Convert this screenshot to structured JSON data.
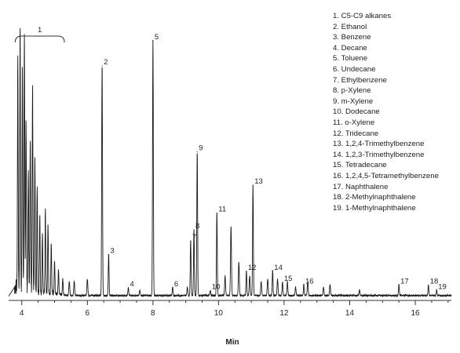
{
  "chart_data": {
    "type": "line",
    "xlabel": "Min",
    "ylabel": "",
    "xlim": [
      3.6,
      17.1
    ],
    "ylim": [
      0,
      100
    ],
    "x_ticks": [
      4,
      6,
      8,
      10,
      12,
      14,
      16
    ],
    "grid": false,
    "legend_position": "top-right",
    "line_color": "#1a1a1a",
    "baseline": 1.2,
    "range_annotation": {
      "label": "1",
      "x_start": 3.8,
      "x_end": 5.3
    },
    "peaks": [
      {
        "label": "2",
        "x": 6.45,
        "y": 83
      },
      {
        "label": "3",
        "x": 6.65,
        "y": 15
      },
      {
        "label": "4",
        "x": 7.25,
        "y": 3
      },
      {
        "label": "5",
        "x": 8.0,
        "y": 92
      },
      {
        "label": "6",
        "x": 8.6,
        "y": 3
      },
      {
        "label": "7",
        "x": 9.15,
        "y": 20
      },
      {
        "label": "8",
        "x": 9.25,
        "y": 24
      },
      {
        "label": "9",
        "x": 9.35,
        "y": 52
      },
      {
        "label": "10",
        "x": 9.75,
        "y": 2
      },
      {
        "label": "11",
        "x": 9.95,
        "y": 30
      },
      {
        "label": "12",
        "x": 10.85,
        "y": 9
      },
      {
        "label": "13",
        "x": 11.05,
        "y": 40
      },
      {
        "label": "14",
        "x": 11.65,
        "y": 9
      },
      {
        "label": "15",
        "x": 11.95,
        "y": 5
      },
      {
        "label": "16",
        "x": 12.6,
        "y": 4
      },
      {
        "label": "17",
        "x": 15.5,
        "y": 4
      },
      {
        "label": "18",
        "x": 16.4,
        "y": 4
      },
      {
        "label": "19",
        "x": 16.65,
        "y": 2
      }
    ],
    "unlabeled_peaks": [
      {
        "x": 3.88,
        "y": 82
      },
      {
        "x": 3.95,
        "y": 94
      },
      {
        "x": 4.02,
        "y": 80
      },
      {
        "x": 4.08,
        "y": 94
      },
      {
        "x": 4.13,
        "y": 60
      },
      {
        "x": 4.2,
        "y": 44
      },
      {
        "x": 4.26,
        "y": 55
      },
      {
        "x": 4.33,
        "y": 73
      },
      {
        "x": 4.4,
        "y": 48
      },
      {
        "x": 4.47,
        "y": 38
      },
      {
        "x": 4.55,
        "y": 27
      },
      {
        "x": 4.63,
        "y": 20
      },
      {
        "x": 4.72,
        "y": 30
      },
      {
        "x": 4.8,
        "y": 24
      },
      {
        "x": 4.9,
        "y": 18
      },
      {
        "x": 5.0,
        "y": 12
      },
      {
        "x": 5.12,
        "y": 9
      },
      {
        "x": 5.25,
        "y": 6
      },
      {
        "x": 5.45,
        "y": 5
      },
      {
        "x": 5.6,
        "y": 5
      },
      {
        "x": 6.0,
        "y": 6
      },
      {
        "x": 7.6,
        "y": 2
      },
      {
        "x": 9.05,
        "y": 3
      },
      {
        "x": 10.2,
        "y": 7
      },
      {
        "x": 10.38,
        "y": 25
      },
      {
        "x": 10.62,
        "y": 12
      },
      {
        "x": 10.95,
        "y": 7
      },
      {
        "x": 11.3,
        "y": 5
      },
      {
        "x": 11.5,
        "y": 6
      },
      {
        "x": 11.8,
        "y": 6
      },
      {
        "x": 12.1,
        "y": 5
      },
      {
        "x": 12.35,
        "y": 3
      },
      {
        "x": 12.72,
        "y": 5
      },
      {
        "x": 13.2,
        "y": 3
      },
      {
        "x": 13.4,
        "y": 4
      },
      {
        "x": 14.3,
        "y": 2
      }
    ],
    "legend": [
      "1. C5-C9 alkanes",
      "2. Ethanol",
      "3. Benzene",
      "4. Decane",
      "5. Toluene",
      "6. Undecane",
      "7. Ethylbenzene",
      "8. p-Xylene",
      "9. m-Xylene",
      "10. Dodecane",
      "11. o-Xylene",
      "12. Tridecane",
      "13. 1,2,4-Trimethylbenzene",
      "14. 1,2,3-Trimethylbenzene",
      "15. Tetradecane",
      "16. 1,2,4,5-Tetramethylbenzene",
      "17. Naphthalene",
      "18. 2-Methylnaphthalene",
      "19. 1-Methylnaphthalene"
    ]
  }
}
